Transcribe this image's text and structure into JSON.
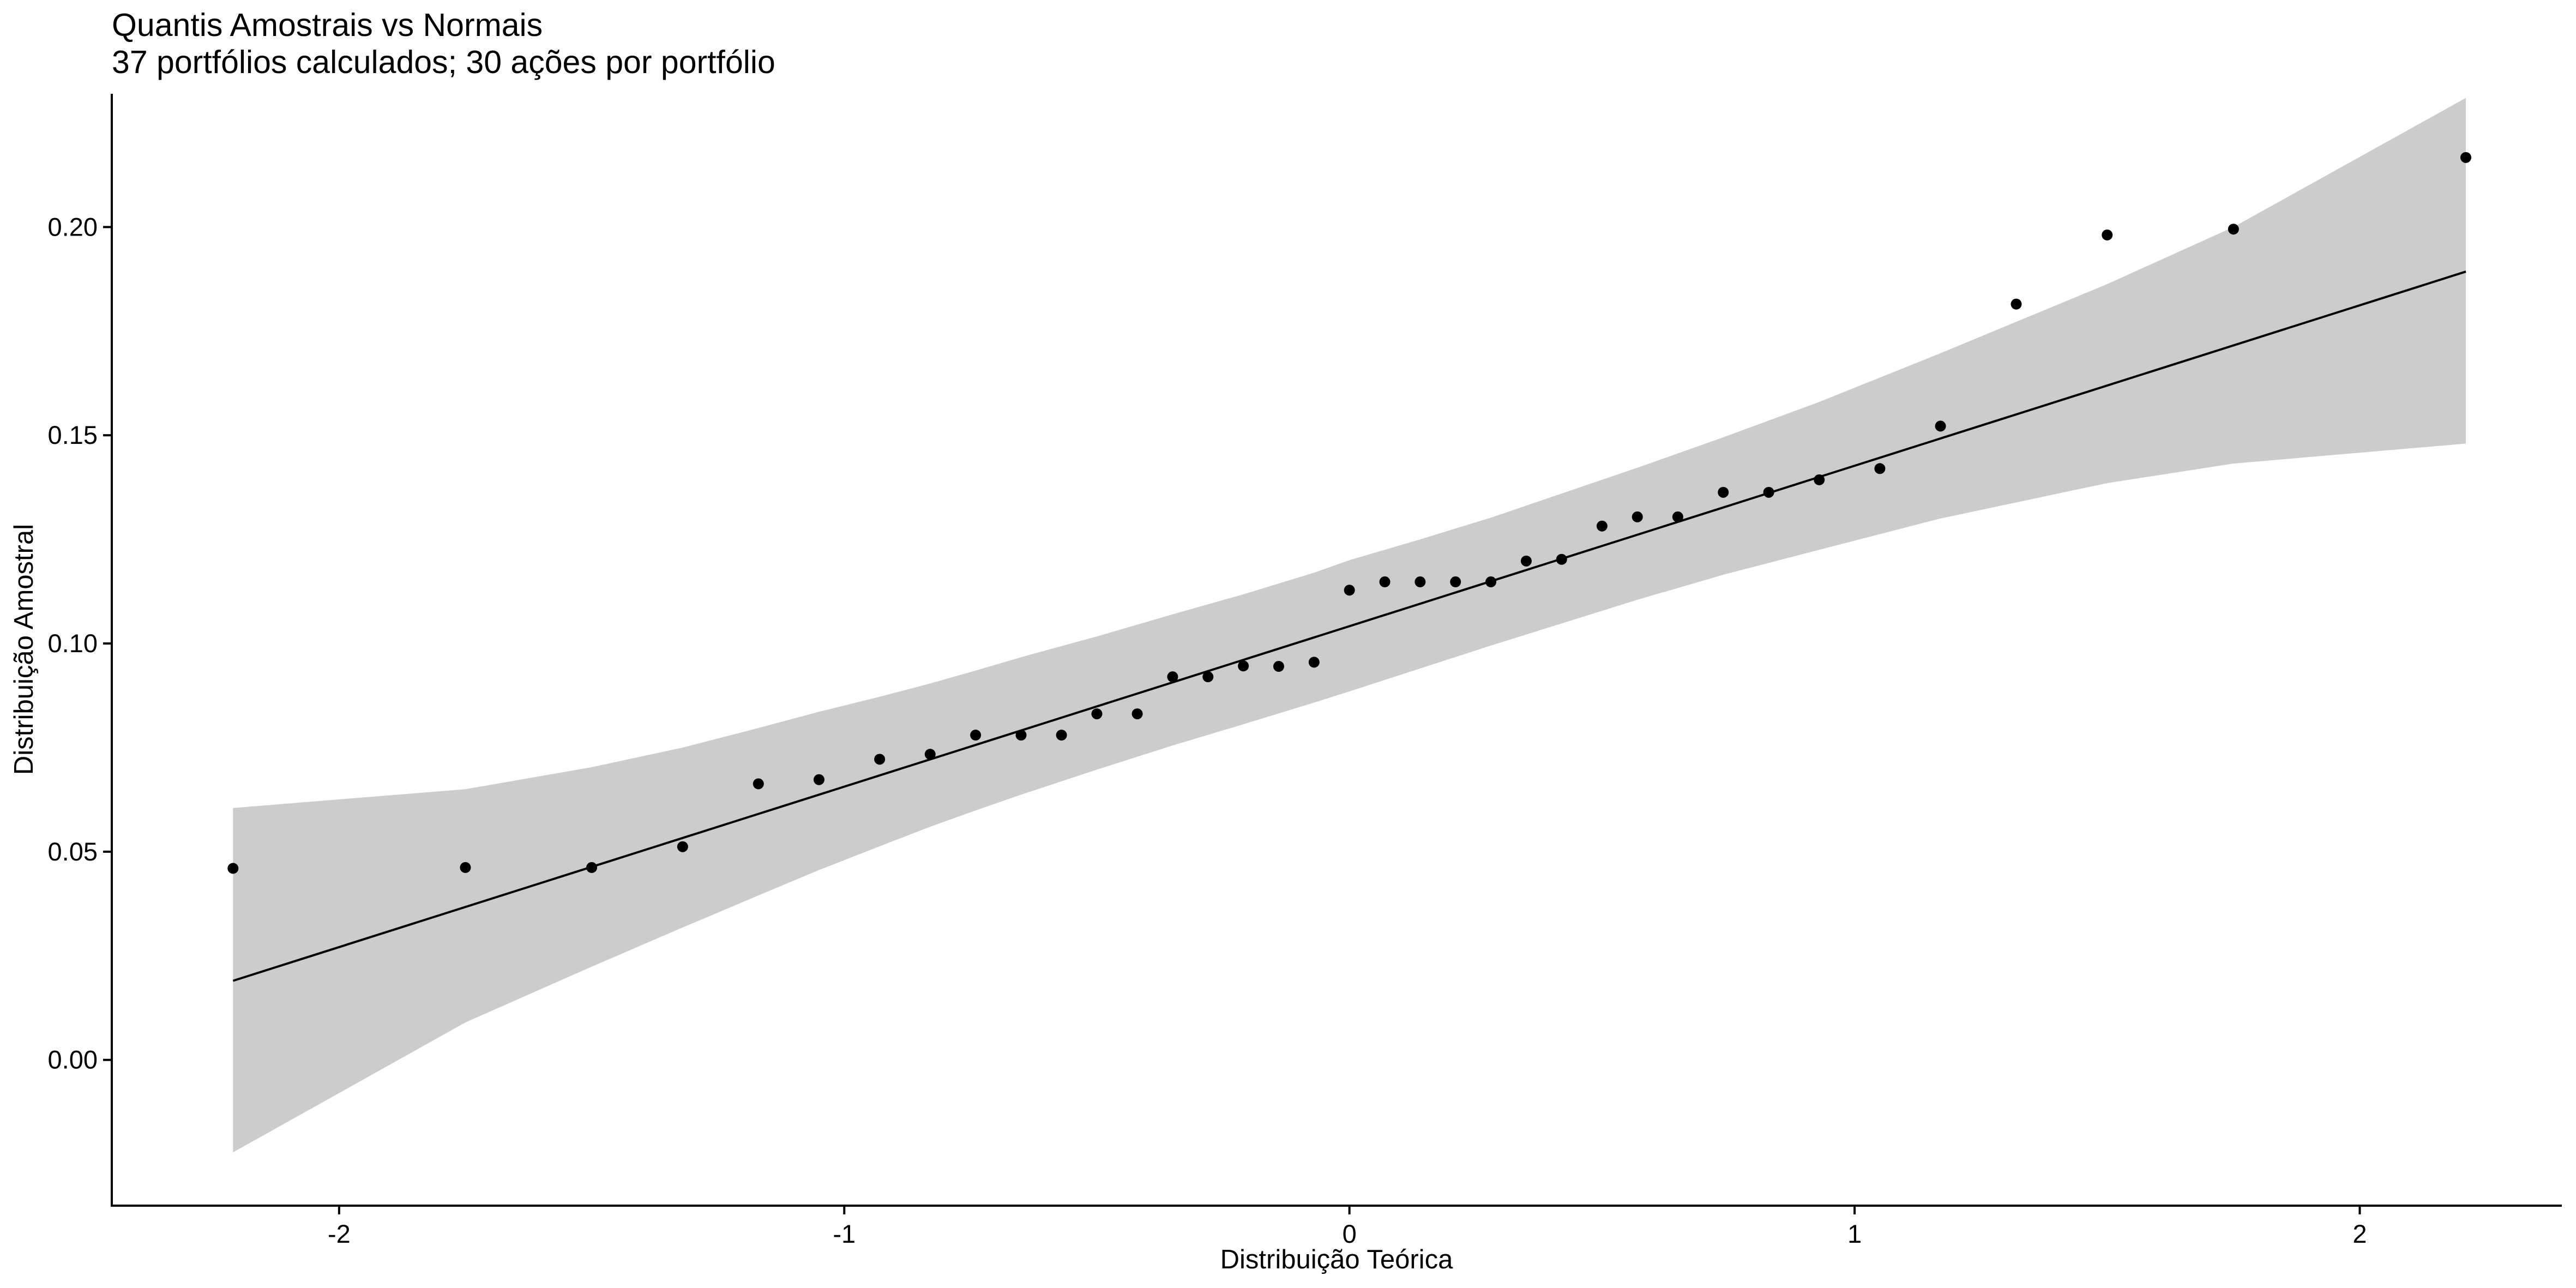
{
  "chart_data": {
    "type": "scatter",
    "title": "Quantis Amostrais vs Normais",
    "subtitle": "37 portfólios calculados; 30 ações por portfólio",
    "xlabel": "Distribuição Teórica",
    "ylabel": "Distribuição Amostral",
    "xlim": [
      -2.45,
      2.4
    ],
    "ylim": [
      -0.035,
      0.232
    ],
    "xticks": [
      -2,
      -1,
      0,
      1,
      2
    ],
    "xtick_labels": [
      "-2",
      "-1",
      "0",
      "1",
      "2"
    ],
    "yticks": [
      0.0,
      0.05,
      0.1,
      0.15,
      0.2
    ],
    "ytick_labels": [
      "0.00",
      "0.05",
      "0.10",
      "0.15",
      "0.20"
    ],
    "grid": false,
    "colors": {
      "points": "#000000",
      "line": "#000000",
      "band": "#cccccc"
    },
    "points": {
      "x": [
        -2.21,
        -1.75,
        -1.5,
        -1.32,
        -1.17,
        -1.05,
        -0.93,
        -0.83,
        -0.74,
        -0.65,
        -0.57,
        -0.5,
        -0.42,
        -0.35,
        -0.28,
        -0.21,
        -0.14,
        -0.07,
        0.0,
        0.07,
        0.14,
        0.21,
        0.28,
        0.35,
        0.42,
        0.5,
        0.57,
        0.65,
        0.74,
        0.83,
        0.93,
        1.05,
        1.17,
        1.32,
        1.5,
        1.75,
        2.21
      ],
      "y": [
        0.046,
        0.0462,
        0.0462,
        0.0512,
        0.0663,
        0.0673,
        0.0722,
        0.0734,
        0.078,
        0.078,
        0.078,
        0.0831,
        0.0831,
        0.092,
        0.092,
        0.0946,
        0.0945,
        0.0955,
        0.1128,
        0.1148,
        0.1148,
        0.1148,
        0.1148,
        0.1198,
        0.1202,
        0.1282,
        0.1304,
        0.1304,
        0.1363,
        0.1363,
        0.1393,
        0.142,
        0.1522,
        0.1815,
        0.1981,
        0.1995,
        0.2167
      ]
    },
    "reference_line": {
      "x": [
        -2.21,
        2.21
      ],
      "y": [
        0.019,
        0.1893
      ]
    },
    "confidence_band": {
      "x": [
        -2.21,
        -1.75,
        -1.5,
        -1.32,
        -1.17,
        -1.05,
        -0.93,
        -0.83,
        -0.74,
        -0.65,
        -0.5,
        -0.35,
        -0.21,
        -0.07,
        0.0,
        0.14,
        0.28,
        0.42,
        0.57,
        0.74,
        0.93,
        1.17,
        1.5,
        1.75,
        2.21
      ],
      "lower": [
        -0.0222,
        0.009,
        0.0224,
        0.0318,
        0.0395,
        0.0456,
        0.0513,
        0.056,
        0.0599,
        0.0637,
        0.0697,
        0.0755,
        0.0806,
        0.0858,
        0.0885,
        0.094,
        0.0995,
        0.1048,
        0.1105,
        0.1165,
        0.1225,
        0.13,
        0.1385,
        0.1432,
        0.148
      ],
      "upper": [
        0.0605,
        0.065,
        0.0703,
        0.075,
        0.0797,
        0.0836,
        0.0872,
        0.0904,
        0.0935,
        0.0967,
        0.1017,
        0.107,
        0.1118,
        0.117,
        0.12,
        0.125,
        0.1302,
        0.136,
        0.1422,
        0.1495,
        0.158,
        0.1697,
        0.1863,
        0.2,
        0.231
      ]
    }
  }
}
